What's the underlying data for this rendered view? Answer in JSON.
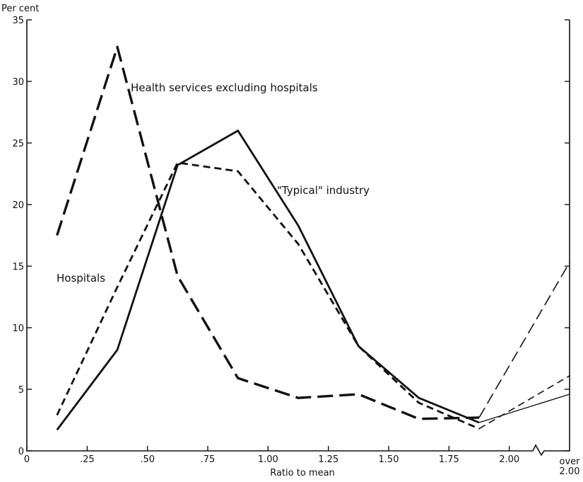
{
  "chart_data": {
    "type": "line",
    "ylabel": "Per cent",
    "xlabel": "Ratio to mean",
    "ylim": [
      0,
      35
    ],
    "xlim": [
      0,
      2.25
    ],
    "grid": false,
    "x_ticks": [
      {
        "value": 0,
        "label": "0"
      },
      {
        "value": 0.25,
        "label": ".25"
      },
      {
        "value": 0.5,
        "label": ".50"
      },
      {
        "value": 0.75,
        "label": ".75"
      },
      {
        "value": 1.0,
        "label": "1.00"
      },
      {
        "value": 1.25,
        "label": "1.25"
      },
      {
        "value": 1.5,
        "label": "1.50"
      },
      {
        "value": 1.75,
        "label": "1.75"
      },
      {
        "value": 2.0,
        "label": "2.00"
      }
    ],
    "x_end_label": [
      "over",
      "2.00"
    ],
    "y_ticks": [
      {
        "value": 0,
        "label": "0"
      },
      {
        "value": 5,
        "label": "5"
      },
      {
        "value": 10,
        "label": "10"
      },
      {
        "value": 15,
        "label": "15"
      },
      {
        "value": 20,
        "label": "20"
      },
      {
        "value": 25,
        "label": "25"
      },
      {
        "value": 30,
        "label": "30"
      },
      {
        "value": 35,
        "label": "35"
      }
    ],
    "series": [
      {
        "name": "Health services excluding hospitals",
        "style": "long-dash",
        "color": "#111111",
        "x": [
          0.125,
          0.375,
          0.625,
          0.875,
          1.125,
          1.375,
          1.625,
          1.875,
          "over 2.00"
        ],
        "values": [
          17.5,
          32.8,
          14.2,
          5.9,
          4.3,
          4.6,
          2.6,
          2.7,
          15.3
        ]
      },
      {
        "name": "Hospitals",
        "style": "short-dash",
        "color": "#111111",
        "x": [
          0.125,
          0.375,
          0.625,
          0.875,
          1.125,
          1.375,
          1.625,
          1.875,
          "over 2.00"
        ],
        "values": [
          2.9,
          13.3,
          23.4,
          22.7,
          16.8,
          8.5,
          3.9,
          1.8,
          6.1
        ]
      },
      {
        "name": "\"Typical\" industry",
        "style": "solid",
        "color": "#111111",
        "x": [
          0.125,
          0.375,
          0.625,
          0.875,
          1.125,
          1.375,
          1.625,
          1.875,
          "over 2.00"
        ],
        "values": [
          1.7,
          8.2,
          23.2,
          26.0,
          18.3,
          8.5,
          4.3,
          2.3,
          4.6
        ]
      }
    ]
  }
}
